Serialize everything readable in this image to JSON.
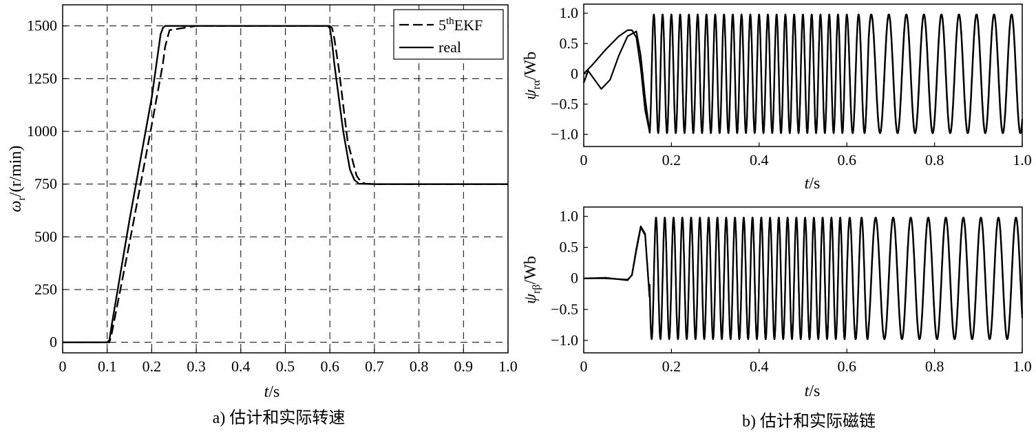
{
  "chart_data": [
    {
      "id": "speed",
      "type": "line",
      "caption": "a) 估计和实际转速",
      "xlabel": {
        "var": "t",
        "unit": "/s"
      },
      "ylabel": {
        "sym": "ω",
        "sub": "r",
        "unit": "/(r/min)"
      },
      "xlim": [
        0,
        1.0
      ],
      "ylim": [
        -50,
        1600
      ],
      "xticks": [
        0,
        0.1,
        0.2,
        0.3,
        0.4,
        0.5,
        0.6,
        0.7,
        0.8,
        0.9,
        1.0
      ],
      "xtick_labels": [
        "0",
        "0.1",
        "0.2",
        "0.3",
        "0.4",
        "0.5",
        "0.6",
        "0.7",
        "0.8",
        "0.9",
        "1.0"
      ],
      "yticks": [
        0,
        250,
        500,
        750,
        1000,
        1250,
        1500
      ],
      "ytick_labels": [
        "0",
        "250",
        "500",
        "750",
        "1000",
        "1250",
        "1500"
      ],
      "grid": true,
      "grid_style": "dashed",
      "legend_position": "top-right",
      "series": [
        {
          "name": {
            "base": "5",
            "sup": "th",
            "rest": "EKF"
          },
          "style": "dashed",
          "x": [
            0,
            0.1,
            0.105,
            0.11,
            0.15,
            0.2,
            0.225,
            0.23,
            0.24,
            0.3,
            0.4,
            0.5,
            0.6,
            0.605,
            0.61,
            0.62,
            0.64,
            0.66,
            0.67,
            0.68,
            0.7,
            0.8,
            0.9,
            1.0
          ],
          "y": [
            0,
            0,
            0,
            40,
            470,
            1030,
            1320,
            1400,
            1480,
            1500,
            1500,
            1500,
            1500,
            1490,
            1440,
            1300,
            950,
            790,
            760,
            752,
            750,
            750,
            750,
            750
          ]
        },
        {
          "name": "real",
          "style": "solid",
          "x": [
            0,
            0.1,
            0.105,
            0.11,
            0.15,
            0.2,
            0.22,
            0.225,
            0.23,
            0.3,
            0.4,
            0.5,
            0.595,
            0.6,
            0.605,
            0.61,
            0.63,
            0.645,
            0.655,
            0.665,
            0.7,
            0.8,
            0.9,
            1.0
          ],
          "y": [
            0,
            0,
            10,
            80,
            580,
            1160,
            1460,
            1490,
            1500,
            1500,
            1500,
            1500,
            1500,
            1490,
            1420,
            1320,
            1000,
            820,
            770,
            752,
            750,
            750,
            750,
            750
          ]
        }
      ]
    },
    {
      "id": "flux-alpha",
      "type": "line",
      "xlabel": {
        "var": "t",
        "unit": "/s"
      },
      "ylabel": {
        "sym": "ψ",
        "sub": "rα",
        "unit": "/Wb"
      },
      "xlim": [
        0,
        1.0
      ],
      "ylim": [
        -1.2,
        1.15
      ],
      "xticks": [
        0,
        0.2,
        0.4,
        0.6,
        0.8,
        1.0
      ],
      "xtick_labels": [
        "0",
        "0.2",
        "0.4",
        "0.6",
        "0.8",
        "1.0"
      ],
      "yticks": [
        1.0,
        0.5,
        0,
        -0.5,
        -1.0
      ],
      "ytick_labels": [
        "1.0",
        "0.5",
        "0",
        "−0.5",
        "−1.0"
      ],
      "grid": false,
      "signal": {
        "amplitude": 0.98,
        "transient_end": 0.15,
        "startup": {
          "estimated": {
            "x": [
              0,
              0.01,
              0.02,
              0.04,
              0.06,
              0.08,
              0.1,
              0.12,
              0.13,
              0.14,
              0.15
            ],
            "y": [
              -0.15,
              0.05,
              -0.05,
              -0.25,
              -0.1,
              0.3,
              0.62,
              0.7,
              0.3,
              -0.4,
              -0.95
            ]
          },
          "real": {
            "x": [
              0,
              0.02,
              0.05,
              0.08,
              0.1,
              0.11,
              0.12,
              0.13,
              0.14,
              0.15
            ],
            "y": [
              0,
              0.15,
              0.4,
              0.62,
              0.72,
              0.72,
              0.6,
              0.1,
              -0.6,
              -0.95
            ]
          }
        },
        "frequency_segments": [
          {
            "t_start": 0.15,
            "t_end": 0.6,
            "freq_hz": 50
          },
          {
            "t_start": 0.6,
            "t_end": 0.65,
            "freq_hz": 37
          },
          {
            "t_start": 0.65,
            "t_end": 1.0,
            "freq_hz": 25
          }
        ]
      }
    },
    {
      "id": "flux-beta",
      "type": "line",
      "caption": "b) 估计和实际磁链",
      "xlabel": {
        "var": "t",
        "unit": "/s"
      },
      "ylabel": {
        "sym": "ψ",
        "sub": "rβ",
        "unit": "/Wb"
      },
      "xlim": [
        0,
        1.0
      ],
      "ylim": [
        -1.2,
        1.15
      ],
      "xticks": [
        0,
        0.2,
        0.4,
        0.6,
        0.8,
        1.0
      ],
      "xtick_labels": [
        "0",
        "0.2",
        "0.4",
        "0.6",
        "0.8",
        "1.0"
      ],
      "yticks": [
        1.0,
        0.5,
        0,
        -0.5,
        -1.0
      ],
      "ytick_labels": [
        "1.0",
        "0.5",
        "0",
        "−0.5",
        "−1.0"
      ],
      "grid": false,
      "signal": {
        "amplitude": 0.98,
        "transient_end": 0.15,
        "startup": {
          "estimated": {
            "x": [
              0,
              0.05,
              0.1,
              0.11,
              0.12,
              0.13,
              0.14,
              0.15
            ],
            "y": [
              0,
              0,
              -0.02,
              0.05,
              0.45,
              0.82,
              0.7,
              -0.3
            ]
          },
          "real": {
            "x": [
              0,
              0.05,
              0.1,
              0.11,
              0.12,
              0.13,
              0.14,
              0.15
            ],
            "y": [
              0,
              0.01,
              -0.03,
              0.06,
              0.48,
              0.84,
              0.72,
              -0.28
            ]
          }
        },
        "frequency_segments": [
          {
            "t_start": 0.15,
            "t_end": 0.6,
            "freq_hz": 50
          },
          {
            "t_start": 0.6,
            "t_end": 0.65,
            "freq_hz": 37
          },
          {
            "t_start": 0.65,
            "t_end": 1.0,
            "freq_hz": 25
          }
        ]
      }
    }
  ]
}
